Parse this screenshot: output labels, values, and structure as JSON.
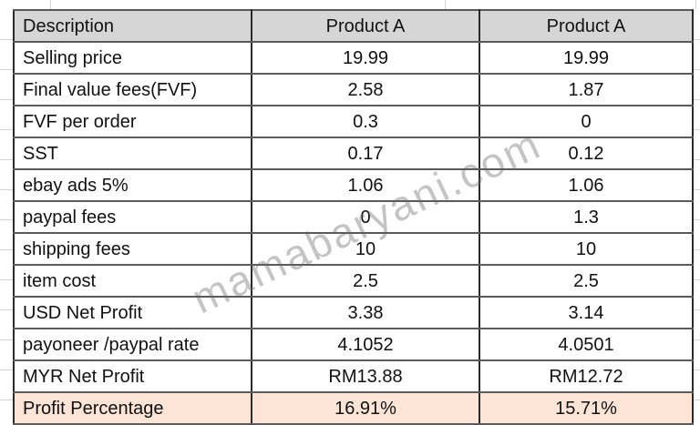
{
  "watermark": "mamabaryani.com",
  "table": {
    "header": [
      "Description",
      "Product A",
      "Product A"
    ],
    "rows": [
      {
        "label": "Selling price",
        "a": "19.99",
        "b": "19.99"
      },
      {
        "label": "Final value fees(FVF)",
        "a": "2.58",
        "b": "1.87"
      },
      {
        "label": "FVF per order",
        "a": "0.3",
        "b": "0"
      },
      {
        "label": "SST",
        "a": "0.17",
        "b": "0.12"
      },
      {
        "label": "ebay ads 5%",
        "a": "1.06",
        "b": "1.06"
      },
      {
        "label": "paypal fees",
        "a": "0",
        "b": "1.3"
      },
      {
        "label": "shipping fees",
        "a": "10",
        "b": "10"
      },
      {
        "label": "item cost",
        "a": "2.5",
        "b": "2.5"
      },
      {
        "label": "USD Net Profit",
        "a": "3.38",
        "b": "3.14"
      },
      {
        "label": "payoneer /paypal rate",
        "a": "4.1052",
        "b": "4.0501"
      },
      {
        "label": "MYR Net Profit",
        "a": "RM13.88",
        "b": "RM12.72"
      },
      {
        "label": "Profit Percentage",
        "a": "16.91%",
        "b": "15.71%"
      }
    ]
  },
  "colors": {
    "header_bg": "#d6d6d6",
    "highlight_bg": "#fce4d6",
    "border_vertical": "#2b2b2b",
    "border_horizontal": "#5a5a5a",
    "margin_gridline": "#d4d4d4",
    "watermark_gray": "#c4c4c4",
    "text": "#111111"
  }
}
